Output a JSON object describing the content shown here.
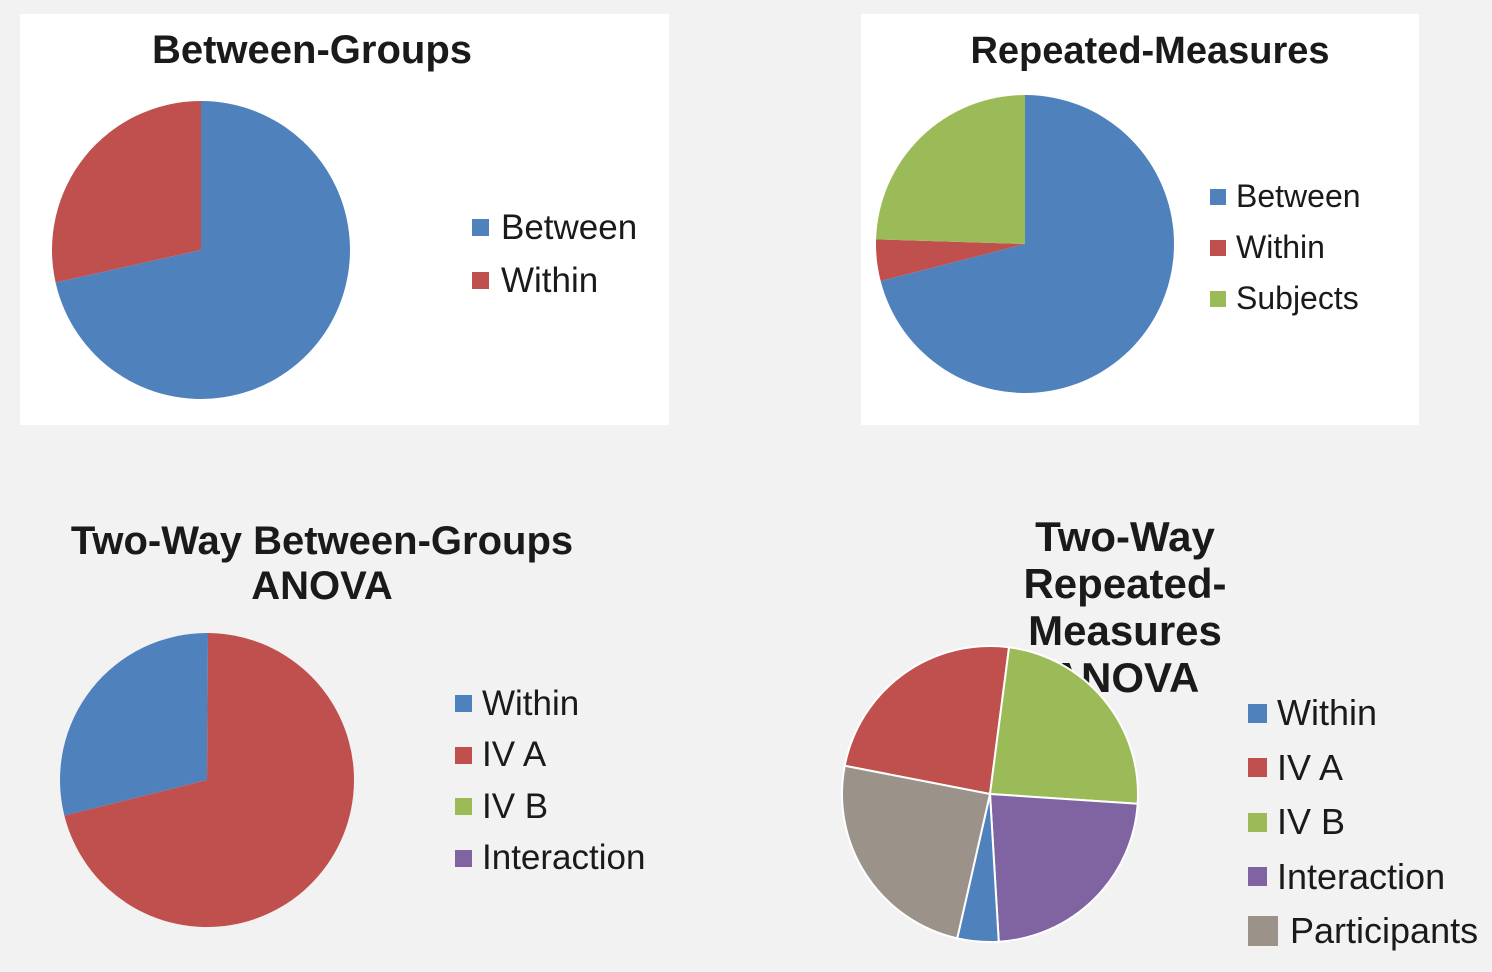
{
  "colors": {
    "blue": "#4f81bd",
    "red": "#c0504d",
    "green": "#9bbb59",
    "purple": "#8064a2",
    "gray": "#9b938a"
  },
  "chart_data": [
    {
      "type": "pie",
      "title": "Between-Groups",
      "legend": "right",
      "slices": [
        {
          "label": "Between",
          "value": 71.5,
          "color": "#4f81bd"
        },
        {
          "label": "Within",
          "value": 28.5,
          "color": "#c0504d"
        }
      ]
    },
    {
      "type": "pie",
      "title": "Repeated-Measures",
      "legend": "right",
      "slices": [
        {
          "label": "Between",
          "value": 71,
          "color": "#4f81bd"
        },
        {
          "label": "Within",
          "value": 4.5,
          "color": "#c0504d"
        },
        {
          "label": "Subjects",
          "value": 24.5,
          "color": "#9bbb59"
        }
      ]
    },
    {
      "type": "pie",
      "title": "Two-Way Between-Groups ANOVA",
      "legend": "right",
      "slices": [
        {
          "label": "Within",
          "value": 29,
          "color": "#4f81bd"
        },
        {
          "label": "IV A",
          "value": 71,
          "color": "#c0504d"
        },
        {
          "label": "IV B",
          "value": 0,
          "color": "#9bbb59"
        },
        {
          "label": "Interaction",
          "value": 0,
          "color": "#8064a2"
        }
      ]
    },
    {
      "type": "pie",
      "title": "Two-Way Repeated-Measures ANOVA",
      "legend": "right",
      "slices": [
        {
          "label": "Within",
          "value": 4.5,
          "color": "#4f81bd"
        },
        {
          "label": "IV A",
          "value": 24,
          "color": "#c0504d"
        },
        {
          "label": "IV B",
          "value": 24,
          "color": "#9bbb59"
        },
        {
          "label": "Interaction",
          "value": 23,
          "color": "#8064a2"
        },
        {
          "label": "Participants",
          "value": 24.5,
          "color": "#9b938a"
        }
      ]
    }
  ]
}
